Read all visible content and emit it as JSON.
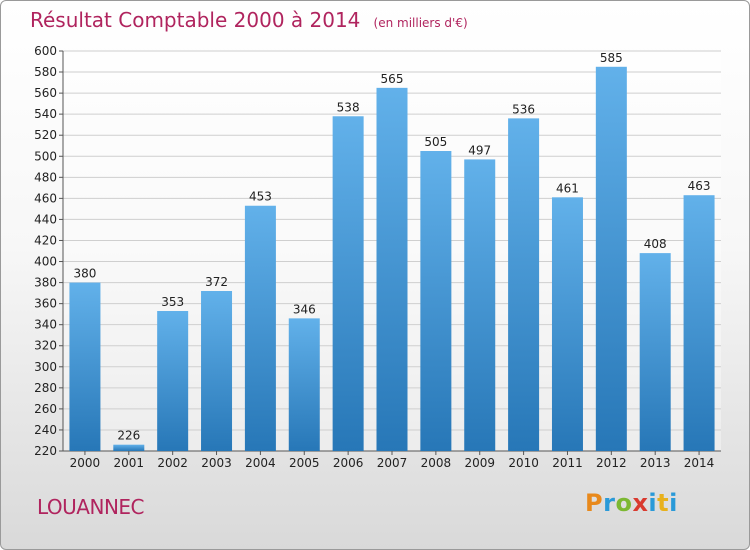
{
  "header": {
    "title": "Résultat Comptable 2000 à 2014",
    "subtitle": "(en milliers d'€)"
  },
  "footer": {
    "commune": "LOUANNEC",
    "logo_letters": [
      "P",
      "r",
      "o",
      "x",
      "i",
      "t",
      "i"
    ]
  },
  "colors": {
    "title": "#b0245e",
    "bar_light": "#62b1ea",
    "bar_dark": "#2777b7",
    "grid": "#cfcfcf"
  },
  "chart_data": {
    "type": "bar",
    "title": "Résultat Comptable 2000 à 2014",
    "subtitle": "(en milliers d'€)",
    "categories": [
      "2000",
      "2001",
      "2002",
      "2003",
      "2004",
      "2005",
      "2006",
      "2007",
      "2008",
      "2009",
      "2010",
      "2011",
      "2012",
      "2013",
      "2014"
    ],
    "values": [
      380,
      226,
      353,
      372,
      453,
      346,
      538,
      565,
      505,
      497,
      536,
      461,
      585,
      408,
      463
    ],
    "ylim": [
      220,
      600
    ],
    "ytick_step": 20,
    "grid": true
  }
}
